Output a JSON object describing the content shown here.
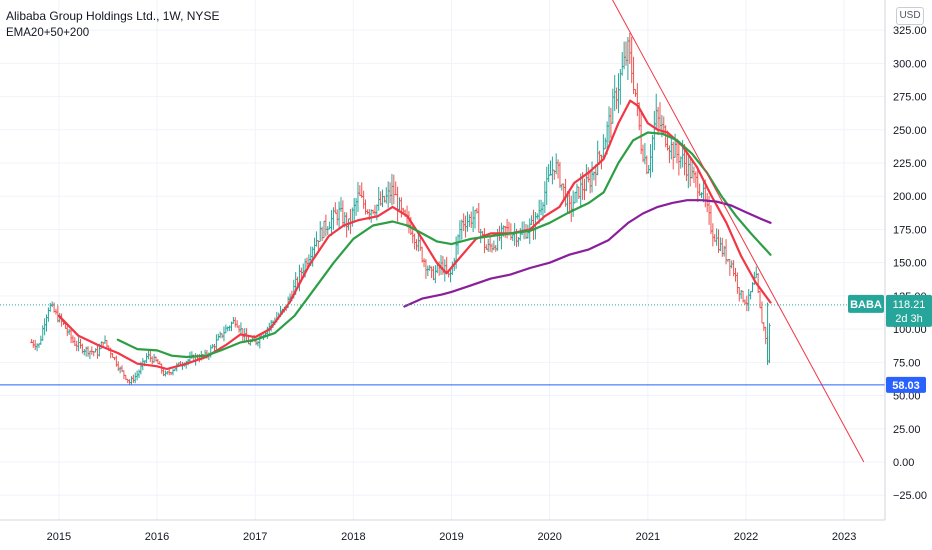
{
  "header": {
    "title": "Alibaba Group Holdings Ltd., 1W, NYSE",
    "indicator": "EMA20+50+200",
    "currency": "USD"
  },
  "colors": {
    "up": "#26a69a",
    "down": "#ef5350",
    "ema20": "#f23645",
    "ema50": "#2e9e45",
    "ema200": "#8a1f9b",
    "trendline": "#f23645",
    "hline": "#2962ff",
    "last_price_label": "#26a69a",
    "grid": "#f0f3fa"
  },
  "chart_data": {
    "type": "line",
    "symbol": "BABA",
    "timeframe": "1W",
    "x_ticks": [
      "2015",
      "2016",
      "2017",
      "2018",
      "2019",
      "2020",
      "2021",
      "2022",
      "2023"
    ],
    "y_ticks": [
      325,
      300,
      275,
      250,
      225,
      200,
      175,
      150,
      125,
      100,
      75,
      50,
      25,
      0,
      -25
    ],
    "y_tick_labels": [
      "325.00",
      "300.00",
      "275.00",
      "250.00",
      "225.00",
      "200.00",
      "175.00",
      "150.00",
      "125.00",
      "100.00",
      "75.00",
      "50.00",
      "25.00",
      "0.00",
      "−25.00"
    ],
    "ylim": [
      -40,
      340
    ],
    "xlim": [
      2014.4,
      2023.3
    ],
    "grid": true,
    "price_series": {
      "name": "BABA",
      "points": [
        [
          2014.72,
          90
        ],
        [
          2014.8,
          88
        ],
        [
          2014.85,
          105
        ],
        [
          2014.9,
          118
        ],
        [
          2014.96,
          112
        ],
        [
          2015.05,
          103
        ],
        [
          2015.15,
          90
        ],
        [
          2015.25,
          85
        ],
        [
          2015.4,
          82
        ],
        [
          2015.45,
          92
        ],
        [
          2015.55,
          80
        ],
        [
          2015.62,
          70
        ],
        [
          2015.72,
          60
        ],
        [
          2015.8,
          66
        ],
        [
          2015.9,
          80
        ],
        [
          2016.0,
          75
        ],
        [
          2016.08,
          65
        ],
        [
          2016.2,
          72
        ],
        [
          2016.35,
          78
        ],
        [
          2016.5,
          80
        ],
        [
          2016.6,
          90
        ],
        [
          2016.7,
          100
        ],
        [
          2016.8,
          107
        ],
        [
          2016.92,
          90
        ],
        [
          2017.0,
          90
        ],
        [
          2017.15,
          103
        ],
        [
          2017.3,
          115
        ],
        [
          2017.45,
          140
        ],
        [
          2017.6,
          165
        ],
        [
          2017.72,
          178
        ],
        [
          2017.85,
          188
        ],
        [
          2017.95,
          178
        ],
        [
          2018.05,
          200
        ],
        [
          2018.15,
          190
        ],
        [
          2018.3,
          195
        ],
        [
          2018.4,
          205
        ],
        [
          2018.5,
          185
        ],
        [
          2018.6,
          175
        ],
        [
          2018.7,
          155
        ],
        [
          2018.8,
          140
        ],
        [
          2018.9,
          148
        ],
        [
          2018.98,
          138
        ],
        [
          2019.1,
          180
        ],
        [
          2019.25,
          185
        ],
        [
          2019.35,
          160
        ],
        [
          2019.45,
          165
        ],
        [
          2019.55,
          175
        ],
        [
          2019.7,
          170
        ],
        [
          2019.85,
          180
        ],
        [
          2019.98,
          210
        ],
        [
          2020.05,
          225
        ],
        [
          2020.12,
          210
        ],
        [
          2020.2,
          190
        ],
        [
          2020.3,
          205
        ],
        [
          2020.4,
          210
        ],
        [
          2020.48,
          225
        ],
        [
          2020.55,
          240
        ],
        [
          2020.62,
          260
        ],
        [
          2020.72,
          290
        ],
        [
          2020.8,
          310
        ],
        [
          2020.87,
          280
        ],
        [
          2020.93,
          240
        ],
        [
          2021.0,
          220
        ],
        [
          2021.08,
          260
        ],
        [
          2021.15,
          250
        ],
        [
          2021.25,
          235
        ],
        [
          2021.35,
          228
        ],
        [
          2021.45,
          215
        ],
        [
          2021.55,
          205
        ],
        [
          2021.65,
          175
        ],
        [
          2021.75,
          160
        ],
        [
          2021.85,
          150
        ],
        [
          2021.95,
          125
        ],
        [
          2022.02,
          120
        ],
        [
          2022.1,
          140
        ],
        [
          2022.15,
          110
        ],
        [
          2022.2,
          95
        ],
        [
          2022.22,
          75
        ],
        [
          2022.24,
          105
        ],
        [
          2022.25,
          118
        ]
      ]
    },
    "series": [
      {
        "name": "EMA20",
        "points": [
          [
            2015.0,
            110
          ],
          [
            2015.2,
            95
          ],
          [
            2015.4,
            88
          ],
          [
            2015.6,
            82
          ],
          [
            2015.8,
            74
          ],
          [
            2016.0,
            72
          ],
          [
            2016.1,
            70
          ],
          [
            2016.3,
            74
          ],
          [
            2016.5,
            79
          ],
          [
            2016.7,
            88
          ],
          [
            2016.85,
            96
          ],
          [
            2017.0,
            94
          ],
          [
            2017.15,
            100
          ],
          [
            2017.35,
            120
          ],
          [
            2017.55,
            148
          ],
          [
            2017.75,
            170
          ],
          [
            2017.9,
            178
          ],
          [
            2018.05,
            182
          ],
          [
            2018.25,
            185
          ],
          [
            2018.4,
            192
          ],
          [
            2018.55,
            185
          ],
          [
            2018.7,
            168
          ],
          [
            2018.85,
            150
          ],
          [
            2018.95,
            142
          ],
          [
            2019.1,
            155
          ],
          [
            2019.25,
            168
          ],
          [
            2019.4,
            172
          ],
          [
            2019.6,
            172
          ],
          [
            2019.8,
            175
          ],
          [
            2019.95,
            185
          ],
          [
            2020.1,
            192
          ],
          [
            2020.25,
            210
          ],
          [
            2020.4,
            218
          ],
          [
            2020.55,
            228
          ],
          [
            2020.7,
            255
          ],
          [
            2020.82,
            272
          ],
          [
            2020.9,
            268
          ],
          [
            2021.0,
            255
          ],
          [
            2021.1,
            250
          ],
          [
            2021.2,
            248
          ],
          [
            2021.35,
            238
          ],
          [
            2021.5,
            222
          ],
          [
            2021.65,
            200
          ],
          [
            2021.8,
            180
          ],
          [
            2021.95,
            155
          ],
          [
            2022.1,
            135
          ],
          [
            2022.25,
            120
          ]
        ]
      },
      {
        "name": "EMA50",
        "points": [
          [
            2015.6,
            92
          ],
          [
            2015.8,
            85
          ],
          [
            2016.0,
            84
          ],
          [
            2016.15,
            80
          ],
          [
            2016.3,
            79
          ],
          [
            2016.5,
            80
          ],
          [
            2016.65,
            84
          ],
          [
            2016.85,
            90
          ],
          [
            2017.0,
            92
          ],
          [
            2017.2,
            97
          ],
          [
            2017.4,
            110
          ],
          [
            2017.6,
            130
          ],
          [
            2017.8,
            150
          ],
          [
            2018.0,
            168
          ],
          [
            2018.2,
            178
          ],
          [
            2018.4,
            181
          ],
          [
            2018.55,
            178
          ],
          [
            2018.7,
            172
          ],
          [
            2018.85,
            166
          ],
          [
            2019.0,
            164
          ],
          [
            2019.2,
            168
          ],
          [
            2019.4,
            170
          ],
          [
            2019.6,
            172
          ],
          [
            2019.8,
            174
          ],
          [
            2020.0,
            180
          ],
          [
            2020.2,
            188
          ],
          [
            2020.4,
            195
          ],
          [
            2020.55,
            203
          ],
          [
            2020.7,
            225
          ],
          [
            2020.85,
            242
          ],
          [
            2021.0,
            248
          ],
          [
            2021.15,
            247
          ],
          [
            2021.3,
            242
          ],
          [
            2021.45,
            232
          ],
          [
            2021.6,
            218
          ],
          [
            2021.75,
            200
          ],
          [
            2021.9,
            185
          ],
          [
            2022.05,
            172
          ],
          [
            2022.2,
            160
          ],
          [
            2022.25,
            156
          ]
        ]
      },
      {
        "name": "EMA200",
        "points": [
          [
            2018.52,
            117
          ],
          [
            2018.7,
            123
          ],
          [
            2018.9,
            126
          ],
          [
            2019.0,
            128
          ],
          [
            2019.2,
            133
          ],
          [
            2019.4,
            138
          ],
          [
            2019.6,
            141
          ],
          [
            2019.8,
            146
          ],
          [
            2020.0,
            150
          ],
          [
            2020.2,
            156
          ],
          [
            2020.4,
            160
          ],
          [
            2020.6,
            167
          ],
          [
            2020.8,
            180
          ],
          [
            2020.95,
            187
          ],
          [
            2021.1,
            192
          ],
          [
            2021.25,
            195
          ],
          [
            2021.4,
            197
          ],
          [
            2021.55,
            197
          ],
          [
            2021.7,
            196
          ],
          [
            2021.85,
            193
          ],
          [
            2022.0,
            188
          ],
          [
            2022.15,
            183
          ],
          [
            2022.25,
            180
          ]
        ]
      }
    ],
    "trendline": {
      "points": [
        [
          2020.55,
          360
        ],
        [
          2023.2,
          0
        ]
      ]
    },
    "horizontal_line": {
      "value": 58.03,
      "label": "58.03"
    },
    "last_price": {
      "value": 118.21,
      "symbol_label": "BABA",
      "price_label": "118.21",
      "countdown": "2d 3h"
    }
  }
}
